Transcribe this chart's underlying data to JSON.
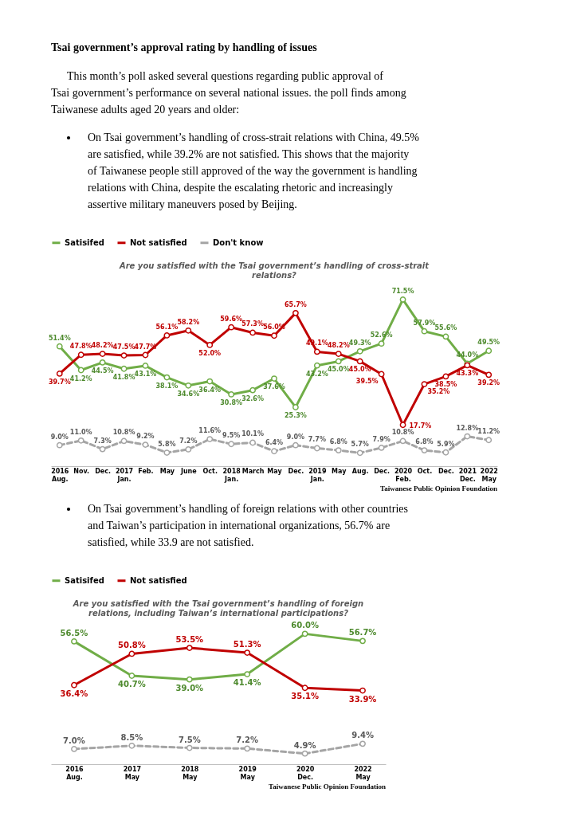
{
  "chart_data": [
    {
      "type": "line",
      "title": "Are you satisfied with the Tsai government’s handling of cross-strait relations?",
      "annotations": [
        "Tsai government’s approval rating by handling of issues",
        "This month’s poll asked several questions regarding public approval of Tsai government’s performance on several national issues. the poll finds among Taiwanese adults aged 20 years and older:",
        "On Tsai government’s handling of cross-strait relations with China, 49.5% are satisfied, while 39.2% are not satisfied. This shows that the majority of Taiwanese people still approved of the way the government is handling relations with China, despite the escalating rhetoric and increasingly assertive military maneuvers posed by Beijing.",
        "Taiwanese Public Opinion Foundation"
      ],
      "categories": [
        "2016\nAug.",
        "Nov.",
        "Dec.",
        "2017\nJan.",
        "Feb.",
        "May",
        "June",
        "Oct.",
        "2018\nJan.",
        "March",
        "May",
        "Dec.",
        "2019\nJan.",
        "May",
        "Aug.",
        "Dec.",
        "2020\nFeb.",
        "Oct.",
        "Dec.",
        "2021\nDec.",
        "2022\nMay"
      ],
      "series": [
        {
          "name": "Satisifed",
          "color": "#70ad47",
          "line_style": "solid",
          "values": [
            51.4,
            41.2,
            44.5,
            41.8,
            43.1,
            38.1,
            34.6,
            36.4,
            30.8,
            32.6,
            37.6,
            25.3,
            43.2,
            45.0,
            49.3,
            52.6,
            71.5,
            57.9,
            55.6,
            44.0,
            49.5
          ],
          "value_labels": [
            "51.4%",
            "41.2%",
            "44.5%",
            "41.8%",
            "43.1%",
            "38.1%",
            "34.6%",
            "36.4%",
            "30.8%",
            "32.6%",
            "37.6%",
            "25.3%",
            "43.2%",
            "45.0%",
            "49.3%",
            "52.6%",
            "71.5%",
            "57.9%",
            "55.6%",
            "44.0%",
            "49.5%"
          ]
        },
        {
          "name": "Not satisfied",
          "color": "#c00000",
          "line_style": "solid",
          "values": [
            39.7,
            47.8,
            48.2,
            47.5,
            47.7,
            56.1,
            58.2,
            52.0,
            59.6,
            57.3,
            56.0,
            65.7,
            49.1,
            48.2,
            45.0,
            39.5,
            17.7,
            35.2,
            38.5,
            43.3,
            39.2
          ],
          "value_labels": [
            "39.7%",
            "47.8%",
            "48.2%",
            "47.5%",
            "47.7%",
            "56.1%",
            "58.2%",
            "52.0%",
            "59.6%",
            "57.3%",
            "56.0%",
            "65.7%",
            "49.1%",
            "48.2%",
            "45.0%",
            "39.5%",
            "17.7%",
            "35.2%",
            "38.5%",
            "43.3%",
            "39.2%"
          ]
        },
        {
          "name": "Don't know",
          "color": "#a5a5a5",
          "line_style": "dashed",
          "values": [
            9.0,
            11.0,
            7.3,
            10.8,
            9.2,
            5.8,
            7.2,
            11.6,
            9.5,
            10.1,
            6.4,
            9.0,
            7.7,
            6.8,
            5.7,
            7.9,
            10.8,
            6.8,
            5.9,
            12.8,
            11.2
          ],
          "value_labels": [
            "9.0%",
            "11.0%",
            "7.3%",
            "10.8%",
            "9.2%",
            "5.8%",
            "7.2%",
            "11.6%",
            "9.5%",
            "10.1%",
            "6.4%",
            "9.0%",
            "7.7%",
            "6.8%",
            "5.7%",
            "7.9%",
            "10.8%",
            "6.8%",
            "5.9%",
            "12.8%",
            "11.2%"
          ]
        }
      ],
      "marker": "circle",
      "legend": "top"
    },
    {
      "type": "line",
      "title": "Are you satisfied with the Tsai government’s handling of foreign relations, including Taiwan’s international participations?",
      "annotations": [
        "On Tsai government’s handling of foreign relations with other countries and Taiwan’s participation in international organizations, 56.7% are satisfied, while 33.9 are not satisfied.",
        "Taiwanese Public Opinion Foundation"
      ],
      "categories": [
        "2016\nAug.",
        "2017\nMay",
        "2018\nMay",
        "2019\nMay",
        "2020\nDec.",
        "2022\nMay"
      ],
      "series": [
        {
          "name": "Satisifed",
          "color": "#70ad47",
          "line_style": "solid",
          "values": [
            56.5,
            40.7,
            39.0,
            41.4,
            60.0,
            56.7
          ],
          "value_labels": [
            "56.5%",
            "40.7%",
            "39.0%",
            "41.4%",
            "60.0%",
            "56.7%"
          ]
        },
        {
          "name": "Not satisfied",
          "color": "#c00000",
          "line_style": "solid",
          "values": [
            36.4,
            50.8,
            53.5,
            51.3,
            35.1,
            33.9
          ],
          "value_labels": [
            "36.4%",
            "50.8%",
            "53.5%",
            "51.3%",
            "35.1%",
            "33.9%"
          ]
        },
        {
          "color": "#a5a5a5",
          "line_style": "dashed",
          "values": [
            7.0,
            8.5,
            7.5,
            7.2,
            4.9,
            9.4
          ],
          "value_labels": [
            "7.0%",
            "8.5%",
            "7.5%",
            "7.2%",
            "4.9%",
            "9.4%"
          ]
        }
      ],
      "marker": "circle",
      "legend": "top"
    }
  ]
}
